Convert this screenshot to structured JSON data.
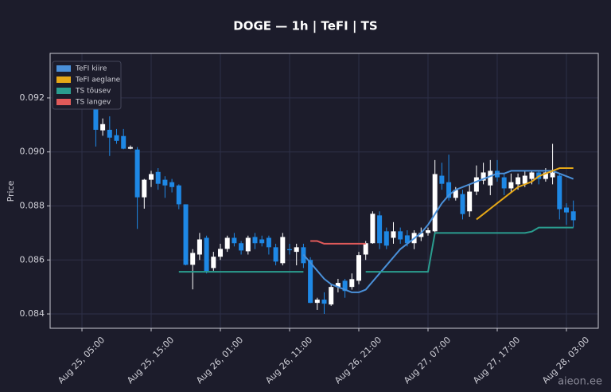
{
  "chart_data": {
    "type": "candlestick",
    "title": "DOGE — 1h  |  TeFI  |  TS",
    "ylabel": "Price",
    "watermark": "aieon.ee",
    "up_color": "#ffffff",
    "down_color": "#1e88e5",
    "grid": true,
    "legend": "upper left",
    "xlim": [
      "Aug 25, 00:24",
      "Aug 28, 07:36"
    ],
    "xticks": [
      "Aug 25, 05:00",
      "Aug 25, 15:00",
      "Aug 26, 01:00",
      "Aug 26, 11:00",
      "Aug 26, 21:00",
      "Aug 27, 07:00",
      "Aug 27, 17:00",
      "Aug 28, 03:00"
    ],
    "ylim": [
      0.08347,
      0.09365
    ],
    "yticks": [
      0.084,
      0.086,
      0.088,
      {
        "value": 0.09,
        "label": "0.090"
      },
      0.092
    ],
    "x": [
      "Aug 25, 07:00",
      "Aug 25, 08:00",
      "Aug 25, 09:00",
      "Aug 25, 10:00",
      "Aug 25, 11:00",
      "Aug 25, 12:00",
      "Aug 25, 13:00",
      "Aug 25, 14:00",
      "Aug 25, 15:00",
      "Aug 25, 16:00",
      "Aug 25, 17:00",
      "Aug 25, 18:00",
      "Aug 25, 19:00",
      "Aug 25, 20:00",
      "Aug 25, 21:00",
      "Aug 25, 22:00",
      "Aug 25, 23:00",
      "Aug 26, 00:00",
      "Aug 26, 01:00",
      "Aug 26, 02:00",
      "Aug 26, 03:00",
      "Aug 26, 04:00",
      "Aug 26, 05:00",
      "Aug 26, 06:00",
      "Aug 26, 07:00",
      "Aug 26, 08:00",
      "Aug 26, 09:00",
      "Aug 26, 10:00",
      "Aug 26, 11:00",
      "Aug 26, 12:00",
      "Aug 26, 13:00",
      "Aug 26, 14:00",
      "Aug 26, 15:00",
      "Aug 26, 16:00",
      "Aug 26, 17:00",
      "Aug 26, 18:00",
      "Aug 26, 19:00",
      "Aug 26, 20:00",
      "Aug 26, 21:00",
      "Aug 26, 22:00",
      "Aug 26, 23:00",
      "Aug 27, 00:00",
      "Aug 27, 01:00",
      "Aug 27, 02:00",
      "Aug 27, 03:00",
      "Aug 27, 04:00",
      "Aug 27, 05:00",
      "Aug 27, 06:00",
      "Aug 27, 07:00",
      "Aug 27, 08:00",
      "Aug 27, 09:00",
      "Aug 27, 10:00",
      "Aug 27, 11:00",
      "Aug 27, 12:00",
      "Aug 27, 13:00",
      "Aug 27, 14:00",
      "Aug 27, 15:00",
      "Aug 27, 16:00",
      "Aug 27, 17:00",
      "Aug 27, 18:00",
      "Aug 27, 19:00",
      "Aug 27, 20:00",
      "Aug 27, 21:00",
      "Aug 27, 22:00",
      "Aug 27, 23:00",
      "Aug 28, 00:00",
      "Aug 28, 01:00",
      "Aug 28, 02:00",
      "Aug 28, 03:00",
      "Aug 28, 04:00"
    ],
    "open": [
      0.09162,
      0.0908,
      0.09082,
      0.09062,
      0.09059,
      0.09012,
      0.09009,
      0.08832,
      0.08897,
      0.08926,
      0.08897,
      0.08888,
      0.08876,
      0.08806,
      0.08582,
      0.0862,
      0.08682,
      0.0857,
      0.08612,
      0.08641,
      0.08682,
      0.08662,
      0.08632,
      0.08685,
      0.08676,
      0.08682,
      0.08647,
      0.08588,
      0.0864,
      0.0863,
      0.08647,
      0.086,
      0.08441,
      0.08453,
      0.08435,
      0.085,
      0.08523,
      0.085,
      0.08523,
      0.0862,
      0.08662,
      0.08765,
      0.08706,
      0.08682,
      0.08706,
      0.08691,
      0.08662,
      0.08685,
      0.087,
      0.08706,
      0.08912,
      0.08888,
      0.0883,
      0.08844,
      0.0878,
      0.08853,
      0.08894,
      0.08876,
      0.0893,
      0.08906,
      0.08865,
      0.0888,
      0.08882,
      0.089,
      0.08924,
      0.089,
      0.08906,
      0.08912,
      0.08794,
      0.0878
    ],
    "high": [
      0.09182,
      0.09124,
      0.09132,
      0.09085,
      0.09085,
      0.09024,
      0.09018,
      0.089,
      0.0893,
      0.0894,
      0.0891,
      0.089,
      0.0888,
      0.08806,
      0.0864,
      0.087,
      0.0869,
      0.0863,
      0.0866,
      0.0869,
      0.087,
      0.0867,
      0.0869,
      0.087,
      0.0869,
      0.0869,
      0.0866,
      0.087,
      0.0866,
      0.0866,
      0.0866,
      0.0861,
      0.0846,
      0.0848,
      0.0851,
      0.0853,
      0.0853,
      0.0855,
      0.0863,
      0.0867,
      0.0878,
      0.0878,
      0.0872,
      0.0874,
      0.0872,
      0.0871,
      0.0871,
      0.0872,
      0.0872,
      0.0897,
      0.0896,
      0.0899,
      0.0887,
      0.0886,
      0.0888,
      0.0895,
      0.0896,
      0.0897,
      0.0897,
      0.0892,
      0.0892,
      0.0892,
      0.0893,
      0.0893,
      0.0893,
      0.0894,
      0.0903,
      0.0892,
      0.0881,
      0.0882
    ],
    "low": [
      0.0902,
      0.0906,
      0.08985,
      0.0903,
      0.0901,
      0.0901,
      0.08715,
      0.0879,
      0.0887,
      0.0886,
      0.0883,
      0.0885,
      0.08788,
      0.0858,
      0.08491,
      0.086,
      0.0855,
      0.0856,
      0.086,
      0.0863,
      0.0865,
      0.0862,
      0.0862,
      0.0864,
      0.0865,
      0.0862,
      0.0858,
      0.0858,
      0.0862,
      0.0858,
      0.0857,
      0.0844,
      0.08415,
      0.084,
      0.0843,
      0.0848,
      0.0846,
      0.0849,
      0.0851,
      0.086,
      0.0866,
      0.0864,
      0.0864,
      0.0866,
      0.0866,
      0.0865,
      0.0864,
      0.0867,
      0.0869,
      0.087,
      0.0886,
      0.0882,
      0.0882,
      0.0875,
      0.0876,
      0.0884,
      0.0888,
      0.0884,
      0.0889,
      0.0884,
      0.0885,
      0.0886,
      0.0887,
      0.0888,
      0.0888,
      0.0889,
      0.0888,
      0.0875,
      0.0873,
      0.0872
    ],
    "close": [
      0.09082,
      0.09103,
      0.09053,
      0.09041,
      0.09012,
      0.09018,
      0.08832,
      0.08897,
      0.08918,
      0.08882,
      0.08876,
      0.0887,
      0.08806,
      0.08582,
      0.08626,
      0.08676,
      0.08559,
      0.08612,
      0.08641,
      0.08682,
      0.08662,
      0.08635,
      0.08682,
      0.08662,
      0.08662,
      0.08647,
      0.08594,
      0.08685,
      0.08636,
      0.08647,
      0.08588,
      0.08441,
      0.08453,
      0.08438,
      0.085,
      0.08515,
      0.08485,
      0.08529,
      0.08618,
      0.08662,
      0.08771,
      0.08662,
      0.08653,
      0.08706,
      0.08676,
      0.08662,
      0.087,
      0.087,
      0.0871,
      0.08918,
      0.08882,
      0.0883,
      0.08859,
      0.0877,
      0.08853,
      0.08906,
      0.08924,
      0.0893,
      0.08906,
      0.08865,
      0.08888,
      0.08906,
      0.08912,
      0.08924,
      0.089,
      0.08924,
      0.08924,
      0.08788,
      0.08776,
      0.08747
    ],
    "series": [
      {
        "name": "TeFI kiire",
        "color": "#4a90d9",
        "values": [
          null,
          null,
          null,
          null,
          null,
          null,
          null,
          null,
          null,
          null,
          null,
          null,
          null,
          null,
          null,
          null,
          null,
          null,
          null,
          null,
          null,
          null,
          null,
          null,
          null,
          null,
          null,
          null,
          null,
          null,
          0.0862,
          0.0859,
          0.0856,
          0.0853,
          0.0851,
          0.085,
          0.0849,
          0.0848,
          0.0848,
          0.0849,
          0.0852,
          0.0855,
          0.0858,
          0.0861,
          0.0864,
          0.0866,
          0.0868,
          0.087,
          0.0873,
          0.0877,
          0.0881,
          0.0884,
          0.0886,
          0.0887,
          0.0888,
          0.0889,
          0.089,
          0.0891,
          0.0892,
          0.0892,
          0.0893,
          0.0893,
          0.0893,
          0.0893,
          0.0893,
          0.0893,
          0.0893,
          0.0892,
          0.0891,
          0.089
        ]
      },
      {
        "name": "TeFI aeglane",
        "color": "#e6a817",
        "values": [
          null,
          null,
          null,
          null,
          null,
          null,
          null,
          null,
          null,
          null,
          null,
          null,
          null,
          null,
          null,
          null,
          null,
          null,
          null,
          null,
          null,
          null,
          null,
          null,
          null,
          null,
          null,
          null,
          null,
          null,
          null,
          null,
          null,
          null,
          null,
          null,
          null,
          null,
          null,
          null,
          null,
          null,
          null,
          null,
          null,
          null,
          null,
          null,
          null,
          null,
          null,
          null,
          null,
          null,
          null,
          0.0875,
          0.0877,
          0.0879,
          0.0881,
          0.0883,
          0.0885,
          0.0887,
          0.0888,
          0.0889,
          0.0891,
          0.0892,
          0.0893,
          0.0894,
          0.0894,
          0.0894
        ]
      },
      {
        "name": "TS tõusev",
        "color": "#2a9d8f",
        "values": [
          null,
          null,
          null,
          null,
          null,
          null,
          null,
          null,
          null,
          null,
          null,
          null,
          0.08556,
          0.08556,
          0.08556,
          0.08556,
          0.08556,
          0.08556,
          0.08556,
          0.08556,
          0.08556,
          0.08556,
          0.08556,
          0.08556,
          0.08556,
          0.08556,
          0.08556,
          0.08556,
          0.08556,
          0.08556,
          0.08556,
          null,
          null,
          null,
          null,
          null,
          null,
          null,
          null,
          0.08556,
          0.08556,
          0.08556,
          0.08556,
          0.08556,
          0.08556,
          0.08556,
          0.08556,
          0.08556,
          0.08556,
          0.087,
          0.087,
          0.087,
          0.087,
          0.087,
          0.087,
          0.087,
          0.087,
          0.087,
          0.087,
          0.087,
          0.087,
          0.087,
          0.087,
          0.08705,
          0.0872,
          0.0872,
          0.0872,
          0.0872,
          0.0872,
          0.0872
        ]
      },
      {
        "name": "TS langev",
        "color": "#e05a5a",
        "values": [
          null,
          null,
          null,
          null,
          null,
          null,
          null,
          null,
          null,
          null,
          null,
          null,
          null,
          null,
          null,
          null,
          null,
          null,
          null,
          null,
          null,
          null,
          null,
          null,
          null,
          null,
          null,
          null,
          null,
          null,
          null,
          0.0867,
          0.0867,
          0.0866,
          0.0866,
          0.0866,
          0.0866,
          0.0866,
          0.0866,
          0.0866,
          null,
          null,
          null,
          null,
          null,
          null,
          null,
          null,
          null,
          null,
          null,
          null,
          null,
          null,
          null,
          null,
          null,
          null,
          null,
          null,
          null,
          null,
          null,
          null,
          null,
          null,
          null,
          null,
          null,
          null
        ]
      }
    ]
  }
}
